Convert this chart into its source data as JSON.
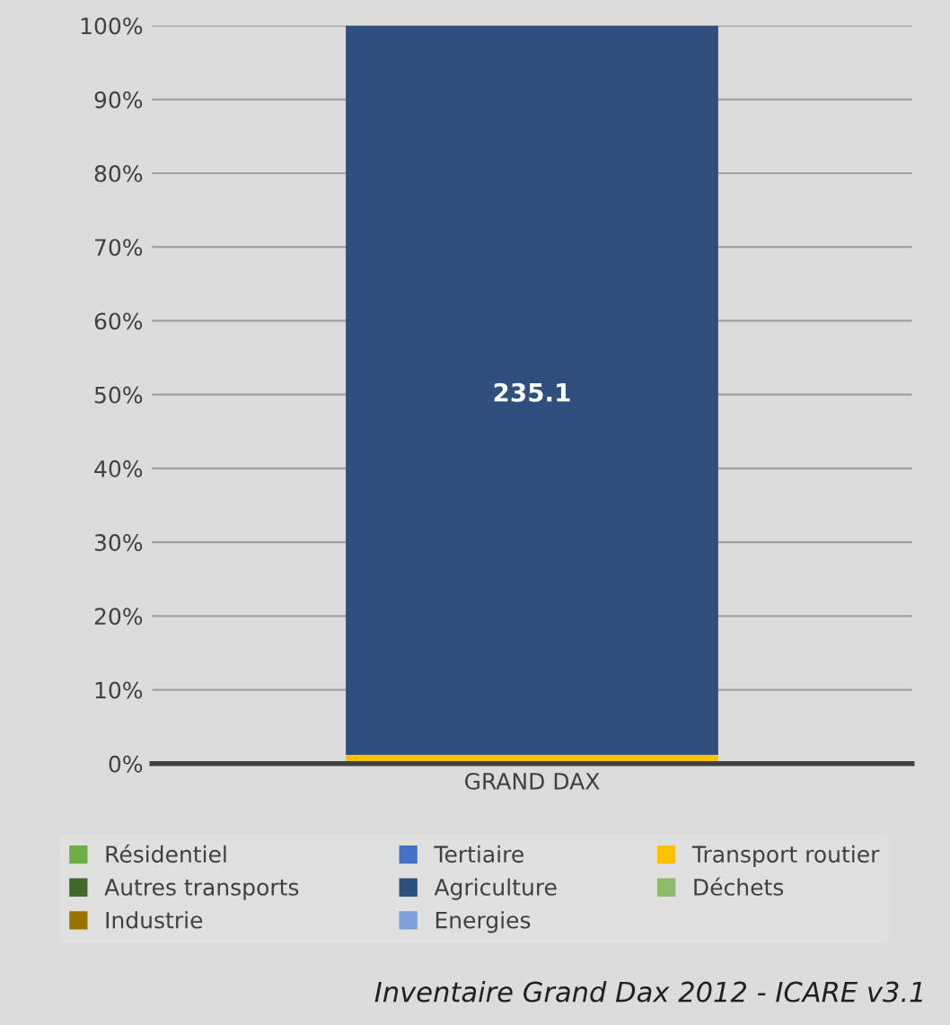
{
  "chart_data": {
    "type": "bar",
    "stacked": true,
    "categories": [
      "GRAND DAX"
    ],
    "series": [
      {
        "name": "Résidentiel",
        "color": "#70ad47",
        "values": [
          null
        ]
      },
      {
        "name": "Tertiaire",
        "color": "#4472c4",
        "values": [
          null
        ]
      },
      {
        "name": "Transport routier",
        "color": "#ffc000",
        "values": [
          1.2
        ]
      },
      {
        "name": "Autres transports",
        "color": "#43682b",
        "values": [
          null
        ]
      },
      {
        "name": "Agriculture",
        "color": "#2f4f7f",
        "values": [
          98.8
        ]
      },
      {
        "name": "Déchets",
        "color": "#8fbc6a",
        "values": [
          null
        ]
      },
      {
        "name": "Industrie",
        "color": "#997300",
        "values": [
          null
        ]
      },
      {
        "name": "Energies",
        "color": "#7e9fd8",
        "values": [
          null
        ]
      }
    ],
    "ylim": [
      0,
      100
    ],
    "yticks": [
      {
        "value": 0,
        "label": "0%"
      },
      {
        "value": 10,
        "label": "10%"
      },
      {
        "value": 20,
        "label": "20%"
      },
      {
        "value": 30,
        "label": "30%"
      },
      {
        "value": 40,
        "label": "40%"
      },
      {
        "value": 50,
        "label": "50%"
      },
      {
        "value": 60,
        "label": "60%"
      },
      {
        "value": 70,
        "label": "70%"
      },
      {
        "value": 80,
        "label": "80%"
      },
      {
        "value": 90,
        "label": "90%"
      },
      {
        "value": 100,
        "label": "100%"
      }
    ],
    "grid": "y",
    "legend": "bottom",
    "annotations": [
      "235.1",
      "Inventaire Grand Dax 2012 - ICARE v3.1"
    ]
  }
}
